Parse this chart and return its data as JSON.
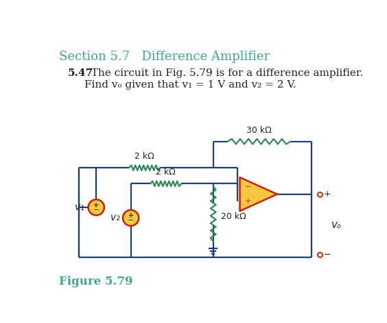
{
  "title_section": "Section 5.7   Difference Amplifier",
  "title_color": "#3aaa8e",
  "problem_bold": "5.47",
  "problem_line1": "  The circuit in Fig. 5.79 is for a difference amplifier.",
  "problem_line2": "Find vₒ given that v₁ = 1 V and v₂ = 2 V.",
  "figure_label": "Figure 5.79",
  "figure_label_color": "#3aaa8e",
  "wire_color": "#1a3d7c",
  "resistor_color": "#2e8b57",
  "opamp_fill": "#f5c842",
  "opamp_edge": "#cc2200",
  "source_fill": "#f5c842",
  "source_edge": "#cc2200",
  "terminal_edge": "#cc3300",
  "ground_color": "#1a3d7c",
  "text_color": "#222222",
  "label_30k": "30 kΩ",
  "label_2k_top": "2 kΩ",
  "label_2k_mid": "2 kΩ",
  "label_20k": "20 kΩ",
  "label_v1": "v₁",
  "label_v2": "v₂",
  "label_vo": "vₒ",
  "background_color": "#ffffff"
}
